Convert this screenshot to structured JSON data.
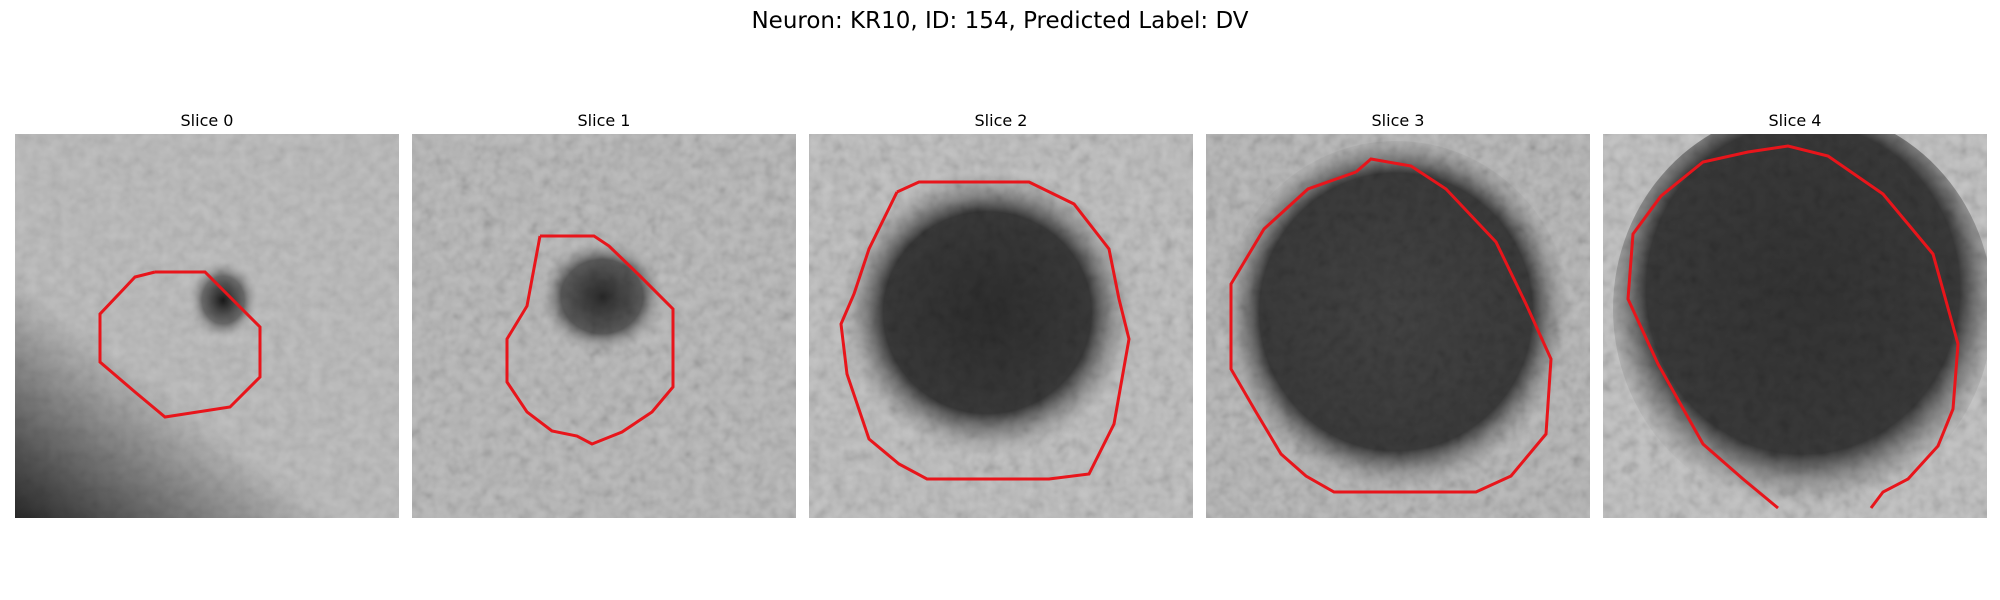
{
  "figure": {
    "title": "Neuron: KR10, ID: 154, Predicted Label: DV",
    "contour_color": "#e8151b",
    "colormap": "grayscale"
  },
  "panels": [
    {
      "title": "Slice 0"
    },
    {
      "title": "Slice 1"
    },
    {
      "title": "Slice 2"
    },
    {
      "title": "Slice 3"
    },
    {
      "title": "Slice 4"
    }
  ]
}
